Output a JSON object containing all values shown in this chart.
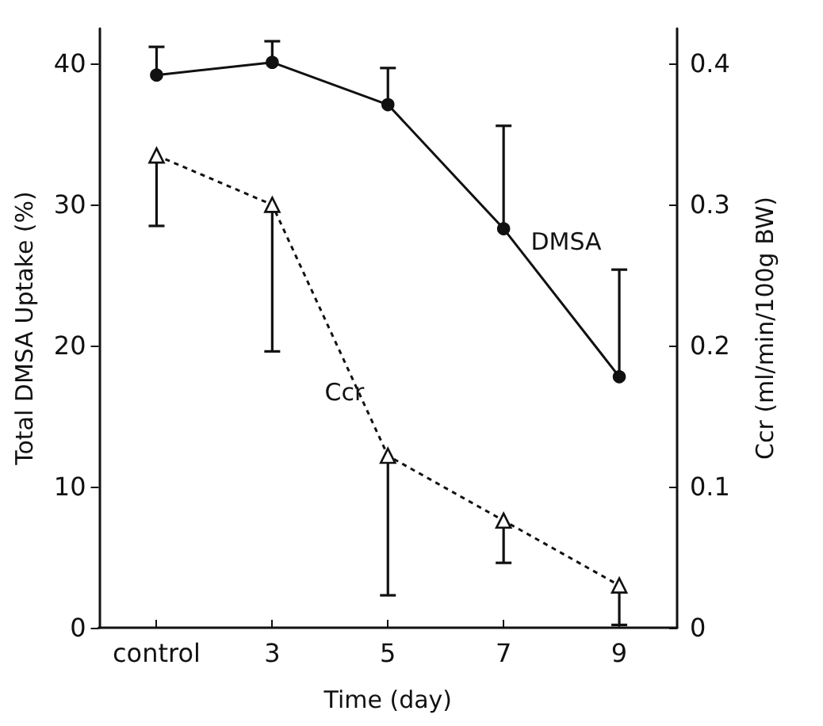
{
  "chart_data": {
    "type": "line",
    "xlabel": "Time (day)",
    "ylabel": "Total DMSA Uptake (%)",
    "y2label": "Ccr (ml/min/100g BW)",
    "categories": [
      "control",
      "3",
      "5",
      "7",
      "9"
    ],
    "series": [
      {
        "name": "DMSA",
        "color": "#111111",
        "marker": "circle",
        "line_style": "solid",
        "values": [
          39.2,
          40.1,
          37.1,
          28.3,
          17.8
        ],
        "errors": [
          [
            39.2,
            41.2
          ],
          [
            40.1,
            41.6
          ],
          [
            37.1,
            39.7
          ],
          [
            28.3,
            35.6
          ],
          [
            17.8,
            25.4
          ]
        ]
      },
      {
        "name": "Ccr",
        "axis": "y2",
        "color": "#111111",
        "marker": "triangle",
        "line_style": "dotted",
        "values": [
          0.335,
          0.3,
          0.122,
          0.076,
          0.03
        ],
        "errors": [
          [
            0.285,
            0.335
          ],
          [
            0.196,
            0.3
          ],
          [
            0.023,
            0.122
          ],
          [
            0.046,
            0.076
          ],
          [
            0.002,
            0.03
          ]
        ]
      }
    ],
    "ylim": [
      0,
      42.5
    ],
    "yticks": [
      0,
      10,
      20,
      30,
      40
    ],
    "y2lim": [
      0,
      0.425
    ],
    "y2ticks": [
      0,
      0.1,
      0.2,
      0.3,
      0.4
    ],
    "grid": false,
    "legend": false
  }
}
